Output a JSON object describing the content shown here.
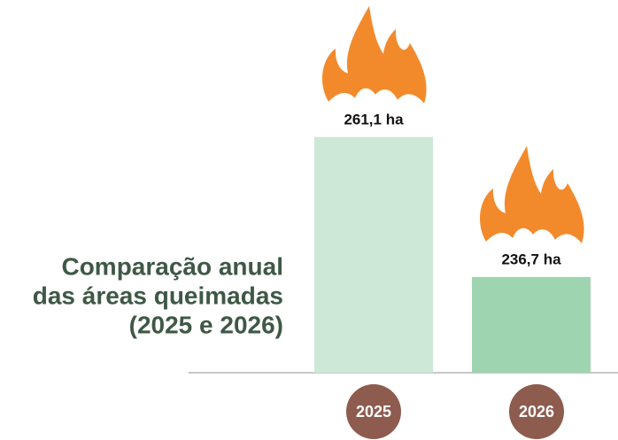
{
  "chart_data": {
    "type": "bar",
    "title": [
      "Comparação anual",
      "das áreas queimadas",
      "(2025 e 2026)"
    ],
    "categories": [
      "2025",
      "2026"
    ],
    "values": [
      261.1,
      236.7
    ],
    "value_labels": [
      "261,1 ha",
      "236,7 ha"
    ],
    "colors": [
      "#cde8d6",
      "#9fd4b0"
    ],
    "ylim": [
      220,
      285
    ]
  }
}
